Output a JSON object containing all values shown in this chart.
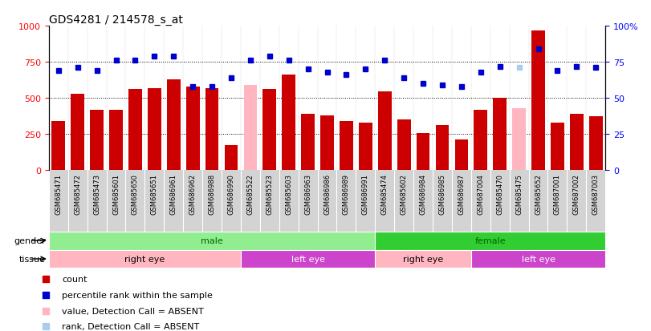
{
  "title": "GDS4281 / 214578_s_at",
  "samples": [
    "GSM685471",
    "GSM685472",
    "GSM685473",
    "GSM685601",
    "GSM685650",
    "GSM685651",
    "GSM686961",
    "GSM686962",
    "GSM686988",
    "GSM686990",
    "GSM685522",
    "GSM685523",
    "GSM685603",
    "GSM686963",
    "GSM686986",
    "GSM686989",
    "GSM686991",
    "GSM685474",
    "GSM685602",
    "GSM686984",
    "GSM686985",
    "GSM686987",
    "GSM687004",
    "GSM685470",
    "GSM685475",
    "GSM685652",
    "GSM687001",
    "GSM687002",
    "GSM687003"
  ],
  "bar_values": [
    340,
    530,
    420,
    420,
    560,
    570,
    630,
    580,
    570,
    175,
    590,
    560,
    660,
    390,
    380,
    340,
    330,
    545,
    350,
    255,
    310,
    210,
    420,
    500,
    430,
    970,
    330,
    390,
    375
  ],
  "bar_absent": [
    false,
    false,
    false,
    false,
    false,
    false,
    false,
    false,
    false,
    false,
    true,
    false,
    false,
    false,
    false,
    false,
    false,
    false,
    false,
    false,
    false,
    false,
    false,
    false,
    true,
    false,
    false,
    false,
    false
  ],
  "dot_values": [
    69,
    71,
    69,
    76,
    76,
    79,
    79,
    58,
    58,
    64,
    76,
    79,
    76,
    70,
    68,
    66,
    70,
    76,
    64,
    60,
    59,
    58,
    68,
    72,
    71,
    84,
    69,
    72,
    71
  ],
  "dot_absent": [
    false,
    false,
    false,
    false,
    false,
    false,
    false,
    false,
    false,
    false,
    false,
    false,
    false,
    false,
    false,
    false,
    false,
    false,
    false,
    false,
    false,
    false,
    false,
    false,
    true,
    false,
    false,
    false,
    false
  ],
  "gender_groups": [
    {
      "label": "male",
      "start": 0,
      "end": 17,
      "color": "#90EE90"
    },
    {
      "label": "female",
      "start": 17,
      "end": 29,
      "color": "#32CD32"
    }
  ],
  "tissue_groups": [
    {
      "label": "right eye",
      "start": 0,
      "end": 10,
      "color": "#FFB6C1"
    },
    {
      "label": "left eye",
      "start": 10,
      "end": 17,
      "color": "#CC44CC"
    },
    {
      "label": "right eye",
      "start": 17,
      "end": 22,
      "color": "#FFB6C1"
    },
    {
      "label": "left eye",
      "start": 22,
      "end": 29,
      "color": "#CC44CC"
    }
  ],
  "bar_color": "#CC0000",
  "bar_absent_color": "#FFB6C1",
  "dot_color": "#0000CC",
  "dot_absent_color": "#AACCEE",
  "ylim_left": [
    0,
    1000
  ],
  "ylim_right": [
    0,
    100
  ],
  "yticks_left": [
    0,
    250,
    500,
    750,
    1000
  ],
  "yticks_right": [
    0,
    25,
    50,
    75,
    100
  ],
  "grid_values": [
    250,
    500,
    750
  ]
}
